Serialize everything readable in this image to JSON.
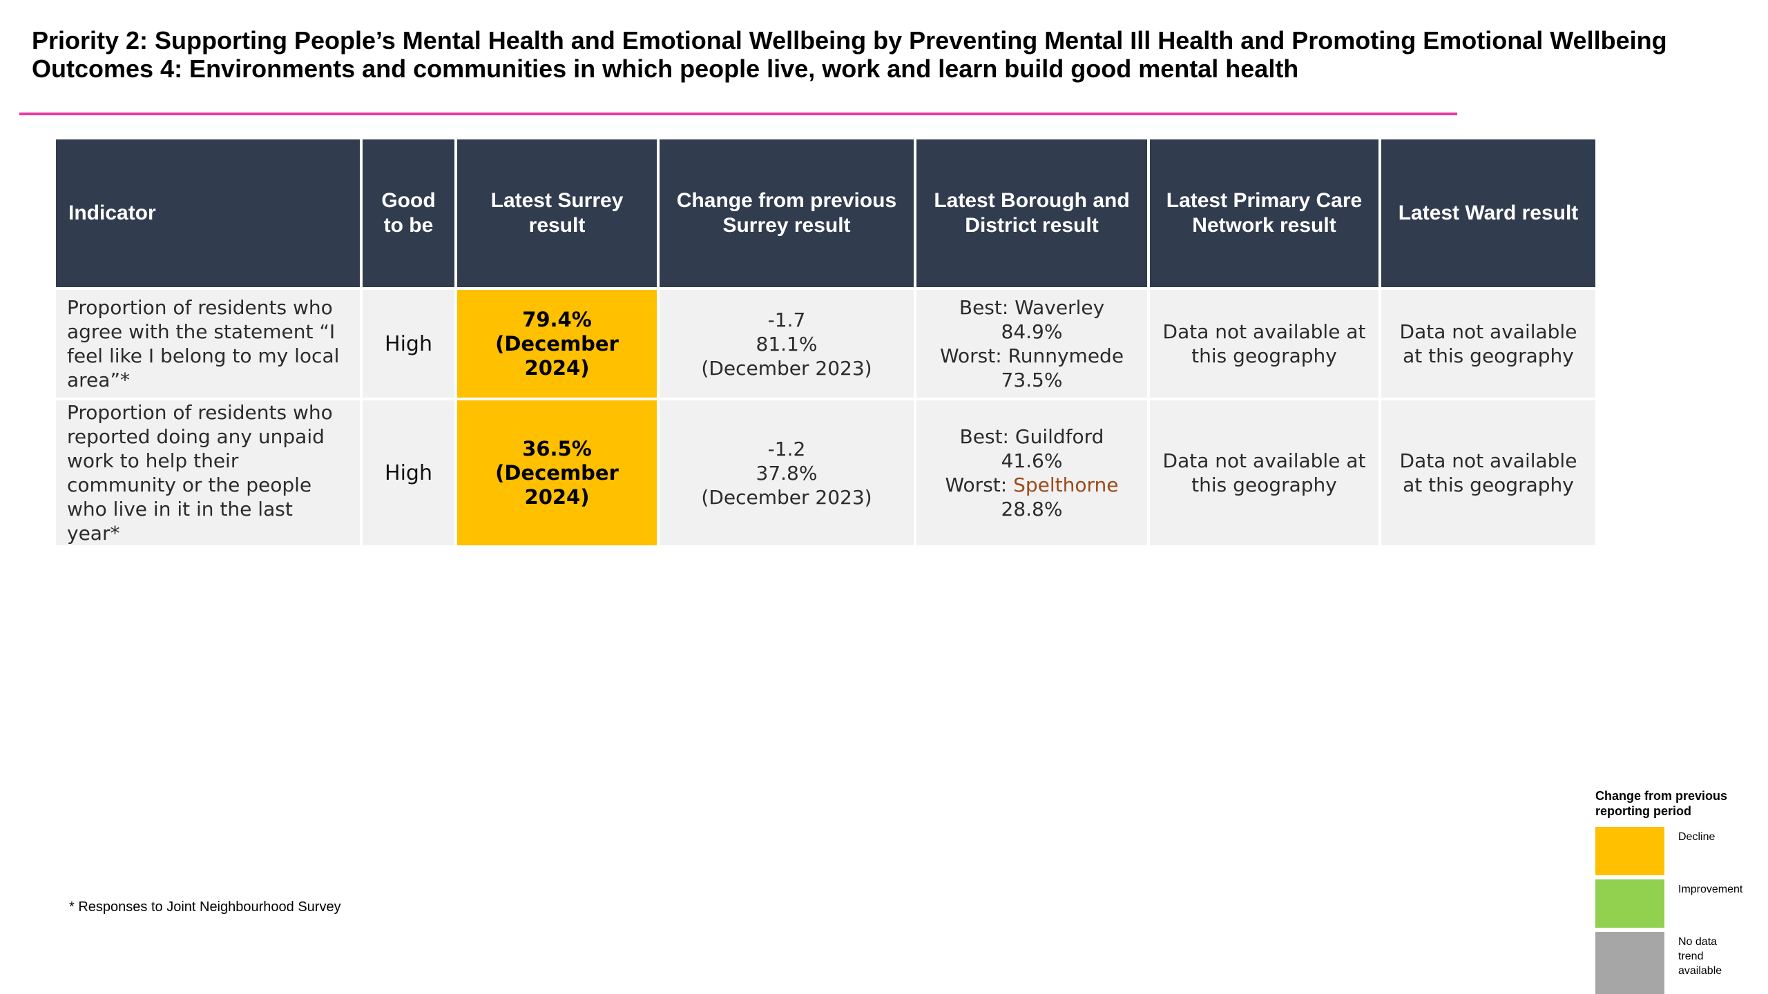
{
  "header": {
    "title_line1": "Priority 2: Supporting People’s Mental Health and Emotional Wellbeing by Preventing Mental Ill Health and Promoting Emotional Wellbeing",
    "title_line2": "Outcomes 4: Environments and communities in which people live, work and learn build good mental health",
    "divider_color": "#e8399e"
  },
  "table": {
    "columns": [
      "Indicator",
      "Good to be",
      "Latest Surrey result",
      "Change from previous Surrey result",
      "Latest Borough and District result",
      "Latest Primary Care Network result",
      "Latest Ward result"
    ],
    "header_color": "#323c4f",
    "rows": [
      {
        "indicator": "Proportion of residents who agree with the statement “I feel like I belong to my local area”*",
        "good_to_be": "High",
        "latest_value": "79.4%",
        "latest_period": "(December 2024)",
        "latest_status_color": "#ffc000",
        "change": "-1.7",
        "previous_value": "81.1%",
        "previous_period": "(December 2023)",
        "best_label": "Best:",
        "best_name": "Waverley",
        "best_value": "84.9%",
        "worst_label": "Worst:",
        "worst_name": "Runnymede",
        "worst_value": "73.5%",
        "pcn": "Data not available at this geography",
        "ward": "Data not available at this geography"
      },
      {
        "indicator": "Proportion of residents who reported doing any unpaid work to help their community or the people who live in it in the last year*",
        "good_to_be": "High",
        "latest_value": "36.5%",
        "latest_period": "(December 2024)",
        "latest_status_color": "#ffc000",
        "change": "-1.2",
        "previous_value": "37.8%",
        "previous_period": "(December 2023)",
        "best_label": "Best:",
        "best_name": "Guildford",
        "best_value": "41.6%",
        "worst_label": "Worst:",
        "worst_name": "Spelthorne",
        "worst_value": "28.8%",
        "pcn": "Data not available at this geography",
        "ward": "Data not available at this geography"
      }
    ]
  },
  "footnote": "* Responses to Joint Neighbourhood Survey",
  "legend": {
    "title": "Change from previous reporting period",
    "items": [
      {
        "label": "Decline",
        "color": "#ffc000"
      },
      {
        "label": "Improvement",
        "color": "#92d050"
      },
      {
        "label": "No data trend available",
        "color": "#a6a6a6"
      }
    ]
  }
}
